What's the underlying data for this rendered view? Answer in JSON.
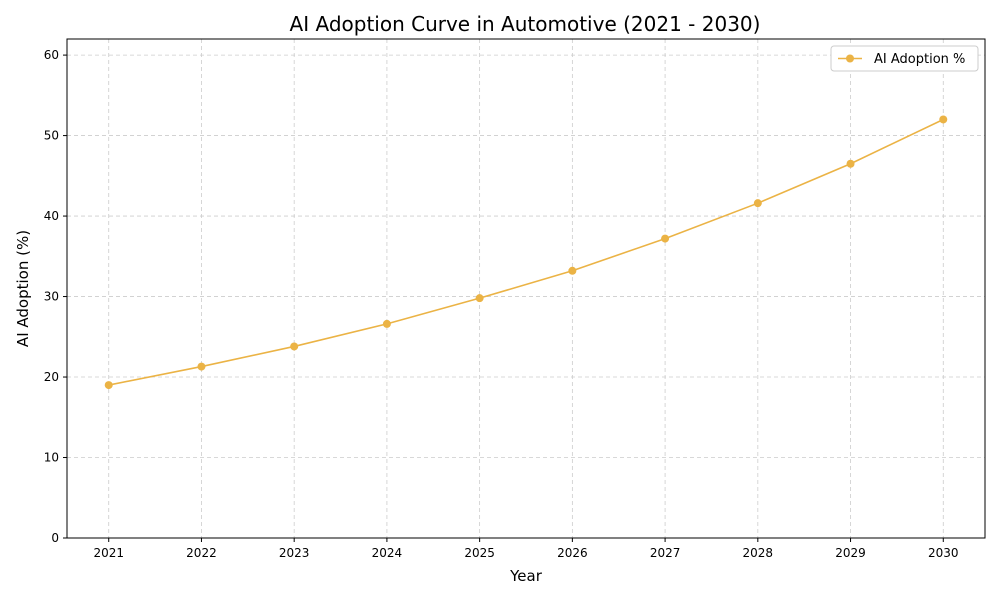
{
  "chart_data": {
    "type": "line",
    "title": "AI Adoption Curve in Automotive (2021 - 2030)",
    "xlabel": "Year",
    "ylabel": "AI Adoption (%)",
    "x": [
      2021,
      2022,
      2023,
      2024,
      2025,
      2026,
      2027,
      2028,
      2029,
      2030
    ],
    "series": [
      {
        "name": "AI Adoption %",
        "values": [
          19.0,
          21.3,
          23.8,
          26.6,
          29.8,
          33.2,
          37.2,
          41.6,
          46.5,
          52.0
        ],
        "color": "#EBB345",
        "marker": "circle"
      }
    ],
    "ylim": [
      0,
      62
    ],
    "yticks": [
      0,
      10,
      20,
      30,
      40,
      50,
      60
    ],
    "xlim": [
      2020.55,
      2030.45
    ],
    "grid": true,
    "legend_position": "top-right"
  }
}
